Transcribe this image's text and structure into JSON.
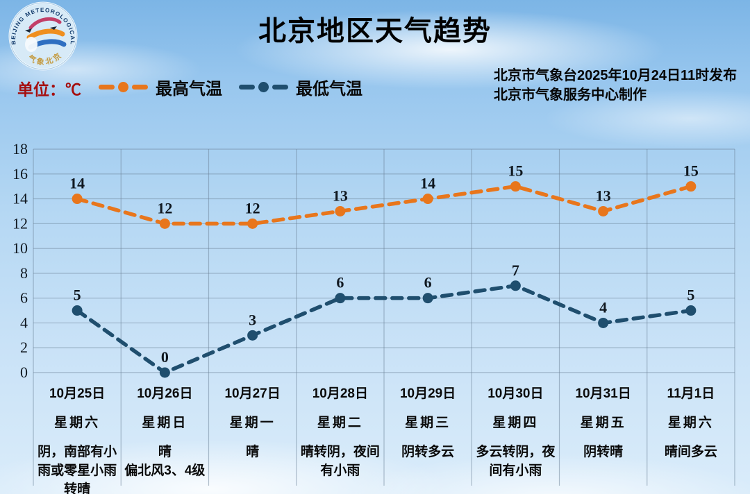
{
  "header": {
    "title": "北京地区天气趋势",
    "unit_label": "单位：℃",
    "issued_line1": "北京市气象台2025年10月24日11时发布",
    "issued_line2": "北京市气象服务中心制作",
    "logo": {
      "ring_text": "BEIJING METEOROLOGICAL SERVICE",
      "ring_text_bottom": "气象北京"
    }
  },
  "legend": [
    {
      "label": "最高气温",
      "color": "#e8761c"
    },
    {
      "label": "最低气温",
      "color": "#1f4e6e"
    }
  ],
  "colors": {
    "max_line": "#e8761c",
    "min_line": "#1f4e6e",
    "unit_text": "#a50e0e",
    "grid": "rgba(105,128,150,0.5)",
    "label_text": "#101820"
  },
  "chart_data": {
    "type": "line",
    "title": "北京地区天气趋势",
    "ylabel": "℃",
    "ylim": [
      0,
      18
    ],
    "ytick_step": 2,
    "grid": true,
    "legend_position": "top-left",
    "line_style": "dashed",
    "categories": [
      "10月25日",
      "10月26日",
      "10月27日",
      "10月28日",
      "10月29日",
      "10月30日",
      "10月31日",
      "11月1日"
    ],
    "series": [
      {
        "name": "最高气温",
        "color": "#e8761c",
        "values": [
          14,
          12,
          12,
          13,
          14,
          15,
          13,
          15
        ]
      },
      {
        "name": "最低气温",
        "color": "#1f4e6e",
        "values": [
          5,
          0,
          3,
          6,
          6,
          7,
          4,
          5
        ]
      }
    ],
    "days": [
      {
        "date": "10月25日",
        "weekday": "星期六",
        "weather_lines": [
          "阴，南部有小",
          "雨或零星小雨",
          "转晴"
        ]
      },
      {
        "date": "10月26日",
        "weekday": "星期日",
        "weather_lines": [
          "晴",
          "偏北风3、4级"
        ]
      },
      {
        "date": "10月27日",
        "weekday": "星期一",
        "weather_lines": [
          "晴"
        ]
      },
      {
        "date": "10月28日",
        "weekday": "星期二",
        "weather_lines": [
          "晴转阴，夜间",
          "有小雨"
        ]
      },
      {
        "date": "10月29日",
        "weekday": "星期三",
        "weather_lines": [
          "阴转多云"
        ]
      },
      {
        "date": "10月30日",
        "weekday": "星期四",
        "weather_lines": [
          "多云转阴，夜",
          "间有小雨"
        ]
      },
      {
        "date": "10月31日",
        "weekday": "星期五",
        "weather_lines": [
          "阴转晴"
        ]
      },
      {
        "date": "11月1日",
        "weekday": "星期六",
        "weather_lines": [
          "晴间多云"
        ]
      }
    ]
  }
}
